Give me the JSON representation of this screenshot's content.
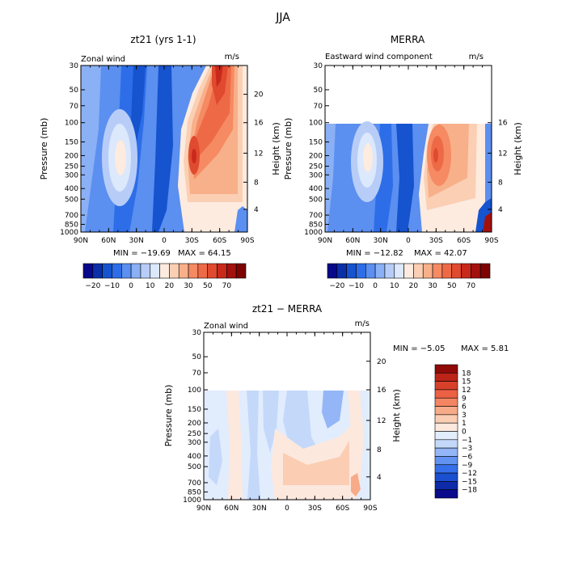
{
  "suptitle": "JJA",
  "colors": {
    "ramp20": [
      "#08088a",
      "#0b2fa8",
      "#1553cf",
      "#2d6ee8",
      "#5b8ff0",
      "#8ab0f5",
      "#b7cdf8",
      "#dce8fb",
      "#fdebe0",
      "#fbcfb3",
      "#f8b08a",
      "#f58a63",
      "#ee6a47",
      "#e04a2f",
      "#c8291b",
      "#a3110d",
      "#7d0303"
    ],
    "ramp_diff": [
      "#0a0a8c",
      "#0d2aa8",
      "#1a4fd0",
      "#3570ea",
      "#6393f1",
      "#94b6f6",
      "#c4d8fa",
      "#e1ecfd",
      "#fde8de",
      "#fbcdb2",
      "#f8ab88",
      "#f48562",
      "#ec6043",
      "#d8402a",
      "#bd2419",
      "#8f0a08"
    ]
  },
  "panels": [
    {
      "title": "zt21 (yrs 1-1)",
      "left_label": "Zonal wind",
      "units": "m/s",
      "min_text": "MIN = −19.69",
      "max_text": "MAX = 64.15",
      "colorbar_labels": [
        "−20",
        "−10",
        "0",
        "10",
        "20",
        "30",
        "50",
        "70"
      ]
    },
    {
      "title": "MERRA",
      "left_label": "Eastward wind component",
      "units": "m/s",
      "min_text": "MIN = −12.82",
      "max_text": "MAX = 42.07",
      "colorbar_labels": [
        "−20",
        "−10",
        "0",
        "10",
        "20",
        "30",
        "50",
        "70"
      ]
    },
    {
      "title": "zt21 − MERRA",
      "left_label": "Zonal wind",
      "units": "m/s",
      "min_text": "MIN = −5.05",
      "max_text": "MAX = 5.81",
      "colorbar_labels": [
        "18",
        "15",
        "12",
        "9",
        "6",
        "3",
        "1",
        "0",
        "−1",
        "−3",
        "−6",
        "−9",
        "−12",
        "−15",
        "−18"
      ]
    }
  ],
  "chart_data": [
    {
      "type": "heatmap",
      "title": "zt21 (yrs 1-1)",
      "xlabel": "",
      "ylabel": "Pressure (mb)",
      "y2label": "Height (km)",
      "x_ticks": [
        "90N",
        "60N",
        "30N",
        "0",
        "30S",
        "60S",
        "90S"
      ],
      "y_ticks": [
        "30",
        "50",
        "70",
        "100",
        "150",
        "200",
        "250",
        "300",
        "400",
        "500",
        "700",
        "850",
        "1000"
      ],
      "y2_ticks": [
        "20",
        "16",
        "12",
        "8",
        "4"
      ],
      "y_scale": "log",
      "value_range": [
        -19.69,
        64.15
      ]
    },
    {
      "type": "heatmap",
      "title": "MERRA",
      "xlabel": "",
      "ylabel": "Pressure (mb)",
      "y2label": "Height (km)",
      "x_ticks": [
        "90N",
        "60N",
        "30N",
        "0",
        "30S",
        "60S",
        "90S"
      ],
      "y_ticks": [
        "30",
        "50",
        "70",
        "100",
        "150",
        "200",
        "250",
        "300",
        "400",
        "500",
        "700",
        "850",
        "1000"
      ],
      "y2_ticks": [
        "16",
        "12",
        "8",
        "4"
      ],
      "y_scale": "log",
      "data_top_mb": 100,
      "value_range": [
        -12.82,
        42.07
      ]
    },
    {
      "type": "heatmap",
      "title": "zt21 − MERRA",
      "xlabel": "",
      "ylabel": "Pressure (mb)",
      "y2label": "Height (km)",
      "x_ticks": [
        "90N",
        "60N",
        "30N",
        "0",
        "30S",
        "60S",
        "90S"
      ],
      "y_ticks": [
        "30",
        "50",
        "70",
        "100",
        "150",
        "200",
        "250",
        "300",
        "400",
        "500",
        "700",
        "850",
        "1000"
      ],
      "y2_ticks": [
        "20",
        "16",
        "12",
        "8",
        "4"
      ],
      "y_scale": "log",
      "data_top_mb": 100,
      "value_range": [
        -5.05,
        5.81
      ]
    }
  ]
}
